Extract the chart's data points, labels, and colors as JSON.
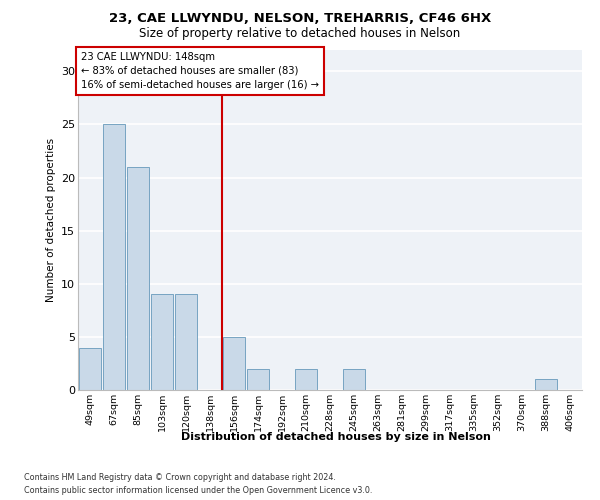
{
  "title1": "23, CAE LLWYNDU, NELSON, TREHARRIS, CF46 6HX",
  "title2": "Size of property relative to detached houses in Nelson",
  "xlabel": "Distribution of detached houses by size in Nelson",
  "ylabel": "Number of detached properties",
  "bar_color": "#c9d9e8",
  "bar_edgecolor": "#6699bb",
  "categories": [
    "49sqm",
    "67sqm",
    "85sqm",
    "103sqm",
    "120sqm",
    "138sqm",
    "156sqm",
    "174sqm",
    "192sqm",
    "210sqm",
    "228sqm",
    "245sqm",
    "263sqm",
    "281sqm",
    "299sqm",
    "317sqm",
    "335sqm",
    "352sqm",
    "370sqm",
    "388sqm",
    "406sqm"
  ],
  "values": [
    4,
    25,
    21,
    9,
    9,
    0,
    5,
    2,
    0,
    2,
    0,
    2,
    0,
    0,
    0,
    0,
    0,
    0,
    0,
    1,
    0
  ],
  "annotation_line1": "23 CAE LLWYNDU: 148sqm",
  "annotation_line2": "← 83% of detached houses are smaller (83)",
  "annotation_line3": "16% of semi-detached houses are larger (16) →",
  "vline_x": 5.5,
  "ylim": [
    0,
    32
  ],
  "yticks": [
    0,
    5,
    10,
    15,
    20,
    25,
    30
  ],
  "annotation_box_color": "#ffffff",
  "annotation_border_color": "#cc0000",
  "vline_color": "#cc0000",
  "footer1": "Contains HM Land Registry data © Crown copyright and database right 2024.",
  "footer2": "Contains public sector information licensed under the Open Government Licence v3.0.",
  "bg_color": "#eef2f7",
  "grid_color": "#ffffff"
}
